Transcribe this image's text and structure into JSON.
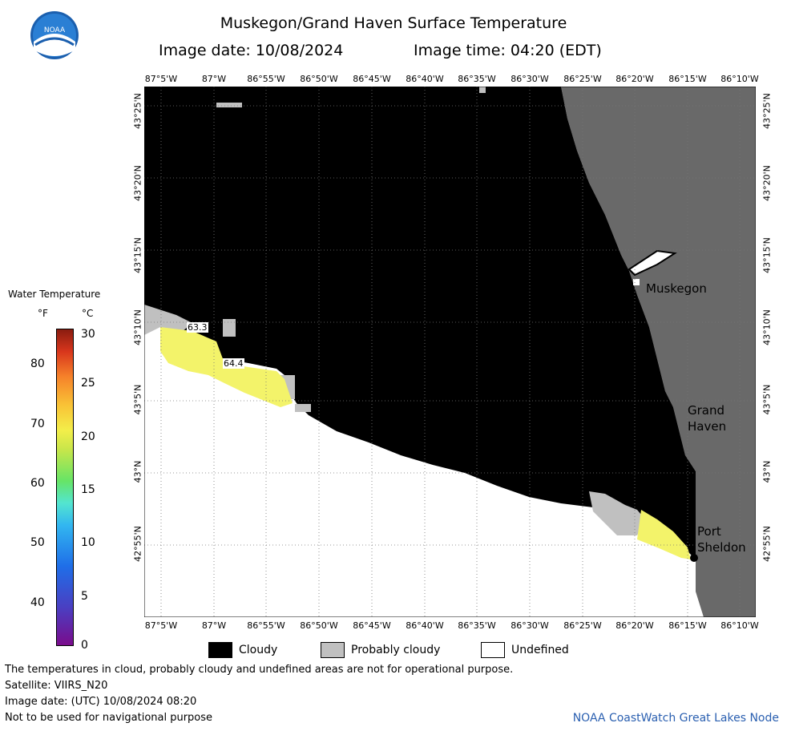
{
  "header": {
    "title": "Muskegon/Grand Haven Surface Temperature",
    "date_line": "Image date: 10/08/2024",
    "time_line": "Image time: 04:20 (EDT)",
    "logo_text": "NOAA"
  },
  "axes": {
    "lon_ticks": [
      "87°5'W",
      "87°W",
      "86°55'W",
      "86°50'W",
      "86°45'W",
      "86°40'W",
      "86°35'W",
      "86°30'W",
      "86°25'W",
      "86°20'W",
      "86°15'W",
      "86°10'W"
    ],
    "lat_ticks": [
      "43°25'N",
      "43°20'N",
      "43°15'N",
      "43°10'N",
      "43°5'N",
      "43°N",
      "42°55'N"
    ]
  },
  "colorbar": {
    "title": "Water Temperature",
    "unit_f": "°F",
    "unit_c": "°C",
    "f_ticks": [
      "80",
      "70",
      "60",
      "50",
      "40"
    ],
    "c_ticks": [
      "30",
      "25",
      "20",
      "15",
      "10",
      "5",
      "0"
    ]
  },
  "map_labels": {
    "muskegon": "Muskegon",
    "grand": "Grand",
    "haven": "Haven",
    "port": "Port",
    "sheldon": "Sheldon",
    "contour_1": "63.3",
    "contour_2": "64.4"
  },
  "legend": {
    "cloudy": "Cloudy",
    "probably_cloudy": "Probably cloudy",
    "undefined": "Undefined"
  },
  "footer": {
    "line1": "The temperatures in cloud, probably cloudy and undefined areas are not for operational purpose.",
    "line2": "Satellite: VIIRS_N20",
    "line3": "Image date: (UTC) 10/08/2024  08:20",
    "line4": "Not to be used for navigational purpose",
    "credit": "NOAA CoastWatch Great Lakes Node"
  },
  "colors": {
    "cloudy": "#000000",
    "probably_cloudy": "#c0c0c0",
    "land": "#696969",
    "undefined": "#ffffff",
    "warm_water": "#f3f36a"
  }
}
